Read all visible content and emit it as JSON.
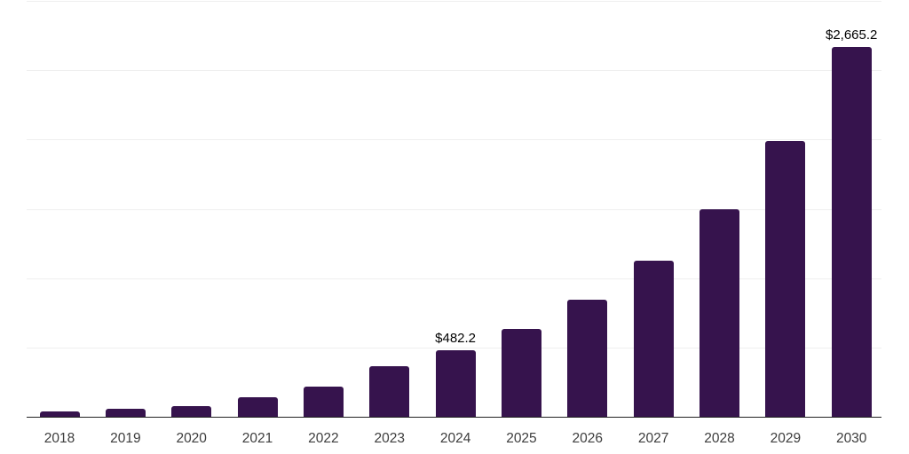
{
  "chart_style": {
    "background_color": "#ffffff",
    "bar_color": "#36134d",
    "gridline_color": "#efefef",
    "axis_line_color": "#222222",
    "x_label_color": "#3d3d3d",
    "value_label_color": "#000000"
  },
  "chart_data": {
    "type": "bar",
    "title": "",
    "xlabel": "",
    "ylabel": "",
    "categories": [
      "2018",
      "2019",
      "2020",
      "2021",
      "2022",
      "2023",
      "2024",
      "2025",
      "2026",
      "2027",
      "2028",
      "2029",
      "2030"
    ],
    "values": [
      38,
      60,
      79,
      139,
      217,
      366,
      482.2,
      633,
      842,
      1125,
      1498,
      1989,
      2665.2
    ],
    "data_labels": {
      "2024": "$482.2",
      "2030": "$2,665.2"
    },
    "value_unit_prefix": "$",
    "ylim": [
      0,
      3000
    ],
    "y_gridlines": [
      500,
      1000,
      1500,
      2000,
      2500,
      3000
    ],
    "grid": true,
    "legend_position": "none"
  }
}
